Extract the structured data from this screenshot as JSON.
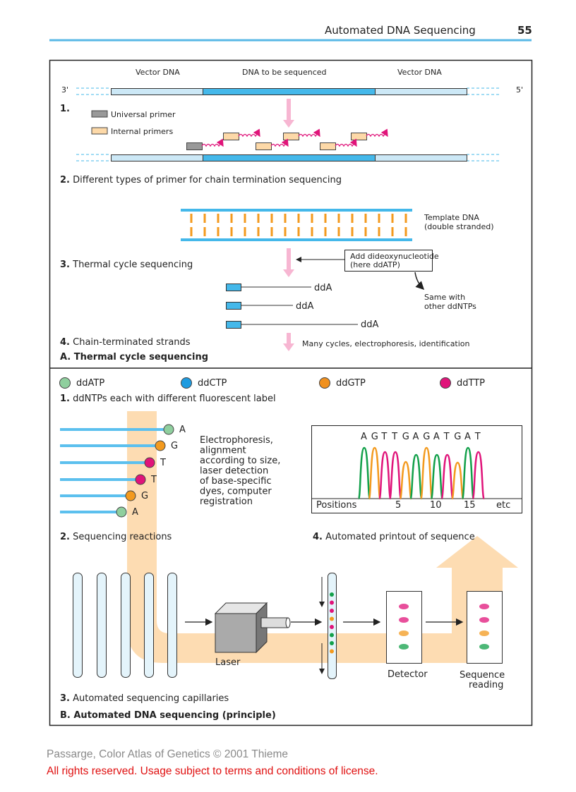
{
  "header": {
    "title": "Automated DNA Sequencing",
    "page_number": "55"
  },
  "panel_a": {
    "top_labels": [
      "Vector DNA",
      "DNA to be sequenced",
      "Vector DNA"
    ],
    "end_3": "3'",
    "end_5": "5'",
    "step1_num": "1.",
    "legend": {
      "universal": "Universal primer",
      "internal": "Internal primers"
    },
    "step2": {
      "num": "2.",
      "text": "Different types of primer for chain termination sequencing"
    },
    "template": {
      "line1": "Template DNA",
      "line2": "(double stranded)"
    },
    "step3": {
      "num": "3.",
      "text": "Thermal cycle sequencing"
    },
    "add_box": {
      "line1": "Add dideoxynucleotide",
      "line2": "(here ddATP)"
    },
    "same_with": {
      "line1": "Same with",
      "line2": "other ddNTPs"
    },
    "strand_ends": [
      "ddA",
      "ddA",
      "ddA"
    ],
    "step4": {
      "num": "4.",
      "text": "Chain-terminated strands"
    },
    "many_cycles": "Many cycles, electrophoresis, identification",
    "caption": "A. Thermal cycle sequencing"
  },
  "panel_b": {
    "ddntps": [
      {
        "label": "ddATP",
        "color": "#8fcf9e"
      },
      {
        "label": "ddCTP",
        "color": "#1e9be0"
      },
      {
        "label": "ddGTP",
        "color": "#f0901e"
      },
      {
        "label": "ddTTP",
        "color": "#e0147a"
      }
    ],
    "step1": {
      "num": "1.",
      "text": "ddNTPs each with different fluorescent label"
    },
    "reactions": [
      "A",
      "G",
      "T",
      "T",
      "G",
      "A"
    ],
    "electrophoresis": [
      "Electrophoresis,",
      "alignment",
      "according to size,",
      "laser detection",
      "of base-specific",
      "dyes, computer",
      "registration"
    ],
    "chart": {
      "sequence": [
        "A",
        "G",
        "T",
        "T",
        "G",
        "A",
        "G",
        "A",
        "T",
        "G",
        "A",
        "T"
      ],
      "axis_label": "Positions",
      "ticks": [
        "5",
        "10",
        "15"
      ],
      "etc": "etc"
    },
    "step2": {
      "num": "2.",
      "text": "Sequencing reactions"
    },
    "step4": {
      "num": "4.",
      "text": "Automated printout of sequence"
    },
    "laser": "Laser",
    "detector": "Detector",
    "sequence_reading": {
      "line1": "Sequence",
      "line2": "reading"
    },
    "step3": {
      "num": "3.",
      "text": "Automated sequencing capillaries"
    },
    "caption": "B. Automated DNA sequencing (principle)"
  },
  "colors": {
    "A": "#12a04a",
    "G": "#f39a1e",
    "T": "#e0147a",
    "dna_light": "#cce8f6",
    "dna_dark": "#44b8ea",
    "band": "#fddcb2"
  },
  "footer": {
    "copyright": "Passarge, Color Atlas of Genetics © 2001 Thieme",
    "rights": "All rights reserved. Usage subject to terms and conditions of license."
  }
}
